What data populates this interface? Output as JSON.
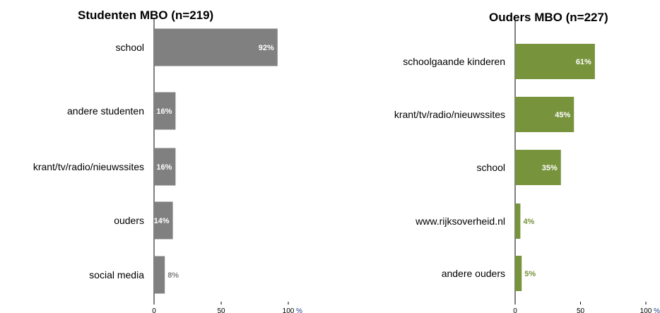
{
  "chart_data": [
    {
      "type": "bar",
      "orientation": "horizontal",
      "title": "Studenten MBO (n=219)",
      "categories": [
        "school",
        "andere studenten",
        "krant/tv/radio/nieuwssites",
        "ouders",
        "social media"
      ],
      "values": [
        92,
        16,
        16,
        14,
        8
      ],
      "value_labels": [
        "92%",
        "16%",
        "16%",
        "14%",
        "8%"
      ],
      "xlim": [
        0,
        100
      ],
      "xticks": [
        "0",
        "50",
        "100"
      ],
      "unit": "%",
      "bar_color": "#808080",
      "label_color": "#ffffff",
      "label_outside_color": "#808080",
      "unit_color": "#1f3f8f",
      "grid": false
    },
    {
      "type": "bar",
      "orientation": "horizontal",
      "title": "Ouders MBO (n=227)",
      "categories": [
        "schoolgaande kinderen",
        "krant/tv/radio/nieuwssites",
        "school",
        "www.rijksoverheid.nl",
        "andere ouders"
      ],
      "values": [
        61,
        45,
        35,
        4,
        5
      ],
      "value_labels": [
        "61%",
        "45%",
        "35%",
        "4%",
        "5%"
      ],
      "xlim": [
        0,
        100
      ],
      "xticks": [
        "0",
        "50",
        "100"
      ],
      "unit": "%",
      "bar_color": "#77933c",
      "label_color": "#ffffff",
      "label_outside_color": "#77933c",
      "unit_color": "#1f3f8f",
      "grid": false
    }
  ]
}
